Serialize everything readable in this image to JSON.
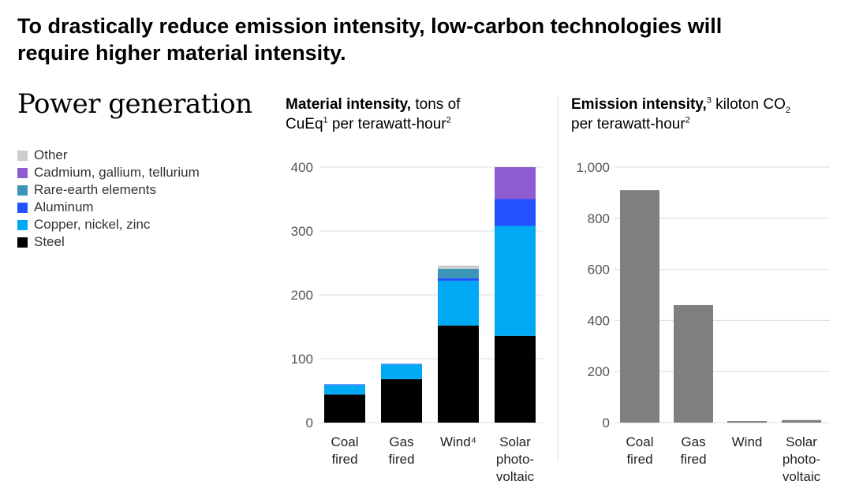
{
  "headline": "To drastically reduce emission intensity, low-carbon technologies will require higher material intensity.",
  "section_title": "Power generation",
  "legend": [
    {
      "label": "Other",
      "color": "#cccccc"
    },
    {
      "label": "Cadmium, gallium, tellurium",
      "color": "#8e5bd0"
    },
    {
      "label": "Rare-earth elements",
      "color": "#3b95b8"
    },
    {
      "label": "Aluminum",
      "color": "#2251ff"
    },
    {
      "label": "Copper, nickel, zinc",
      "color": "#00a9f4"
    },
    {
      "label": "Steel",
      "color": "#000000"
    }
  ],
  "material_title": {
    "bold": "Material intensity,",
    "rest": " tons of",
    "line2a": "CuEq",
    "sup1": "1",
    "line2b": " per terawatt-hour",
    "sup2": "2"
  },
  "emission_title": {
    "bold": "Emission intensity,",
    "sup3": "3",
    "rest": " kiloton CO",
    "sub2": "2",
    "line2": "per terawatt-hour",
    "sup2": "2"
  },
  "chart_data": [
    {
      "type": "bar",
      "stacked": true,
      "title": "Material intensity, tons of CuEq per terawatt-hour",
      "categories": [
        [
          "Coal",
          "fired"
        ],
        [
          "Gas",
          "fired"
        ],
        [
          "Wind⁴"
        ],
        [
          "Solar",
          "photo-",
          "voltaic"
        ]
      ],
      "series": [
        {
          "name": "Steel",
          "color": "#000000",
          "values": [
            44,
            68,
            152,
            136
          ]
        },
        {
          "name": "Copper, nickel, zinc",
          "color": "#00a9f4",
          "values": [
            15,
            23,
            70,
            172
          ]
        },
        {
          "name": "Aluminum",
          "color": "#2251ff",
          "values": [
            1,
            1,
            4,
            42
          ]
        },
        {
          "name": "Rare-earth elements",
          "color": "#3b95b8",
          "values": [
            0,
            0,
            15,
            0
          ]
        },
        {
          "name": "Cadmium, gallium, tellurium",
          "color": "#8e5bd0",
          "values": [
            0,
            0,
            0,
            50
          ]
        },
        {
          "name": "Other",
          "color": "#cccccc",
          "values": [
            0,
            0,
            5,
            0
          ]
        }
      ],
      "ylim": [
        0,
        400
      ],
      "yticks": [
        0,
        100,
        200,
        300,
        400
      ],
      "ytick_labels": [
        "0",
        "100",
        "200",
        "300",
        "400"
      ],
      "grid": true
    },
    {
      "type": "bar",
      "title": "Emission intensity, kiloton CO2 per terawatt-hour",
      "categories": [
        [
          "Coal",
          "fired"
        ],
        [
          "Gas",
          "fired"
        ],
        [
          "Wind"
        ],
        [
          "Solar",
          "photo-",
          "voltaic"
        ]
      ],
      "values": [
        910,
        460,
        6,
        10
      ],
      "color": "#7f7f7f",
      "ylim": [
        0,
        1000
      ],
      "yticks": [
        0,
        200,
        400,
        600,
        800,
        1000
      ],
      "ytick_labels": [
        "0",
        "200",
        "400",
        "600",
        "800",
        "1,000"
      ],
      "grid": true
    }
  ]
}
